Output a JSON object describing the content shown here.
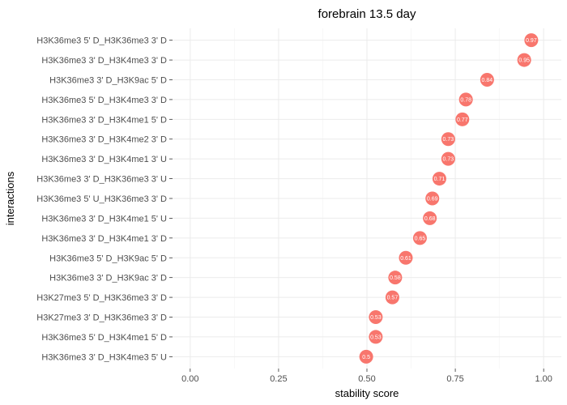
{
  "chart_data": {
    "type": "scatter",
    "title": "forebrain 13.5 day",
    "xlabel": "stability score",
    "ylabel": "interactions",
    "xlim": [
      -0.05,
      1.05
    ],
    "x_ticks": [
      0,
      0.25,
      0.5,
      0.75,
      1.0
    ],
    "x_tick_labels": [
      "0.00",
      "0.25",
      "0.50",
      "0.75",
      "1.00"
    ],
    "grid": true,
    "point_color": "#F8766D",
    "point_label_color": "#FFFFFF",
    "categories": [
      "H3K36me3 5' D_H3K36me3 3' D",
      "H3K36me3 3' D_H3K4me3 3' D",
      "H3K36me3 3' D_H3K9ac 5' D",
      "H3K36me3 5' D_H3K4me3 3' D",
      "H3K36me3 3' D_H3K4me1 5' D",
      "H3K36me3 3' D_H3K4me2 3' D",
      "H3K36me3 3' D_H3K4me1 3' U",
      "H3K36me3 3' D_H3K36me3 3' U",
      "H3K36me3 5' U_H3K36me3 3' D",
      "H3K36me3 3' D_H3K4me1 5' U",
      "H3K36me3 3' D_H3K4me1 3' D",
      "H3K36me3 5' D_H3K9ac 5' D",
      "H3K36me3 3' D_H3K9ac 3' D",
      "H3K27me3 5' D_H3K36me3 3' D",
      "H3K27me3 3' D_H3K36me3 3' D",
      "H3K36me3 5' D_H3K4me1 5' D",
      "H3K36me3 3' D_H3K4me3 5' U"
    ],
    "values": [
      0.965,
      0.945,
      0.84,
      0.78,
      0.77,
      0.73,
      0.73,
      0.705,
      0.685,
      0.678,
      0.65,
      0.61,
      0.58,
      0.572,
      0.525,
      0.525,
      0.498
    ],
    "value_labels": [
      "0.97",
      "0.95",
      "0.84",
      "0.78",
      "0.77",
      "0.73",
      "0.73",
      "0.71",
      "0.69",
      "0.68",
      "0.65",
      "0.61",
      "0.58",
      "0.57",
      "0.53",
      "0.53",
      "0.5"
    ]
  }
}
